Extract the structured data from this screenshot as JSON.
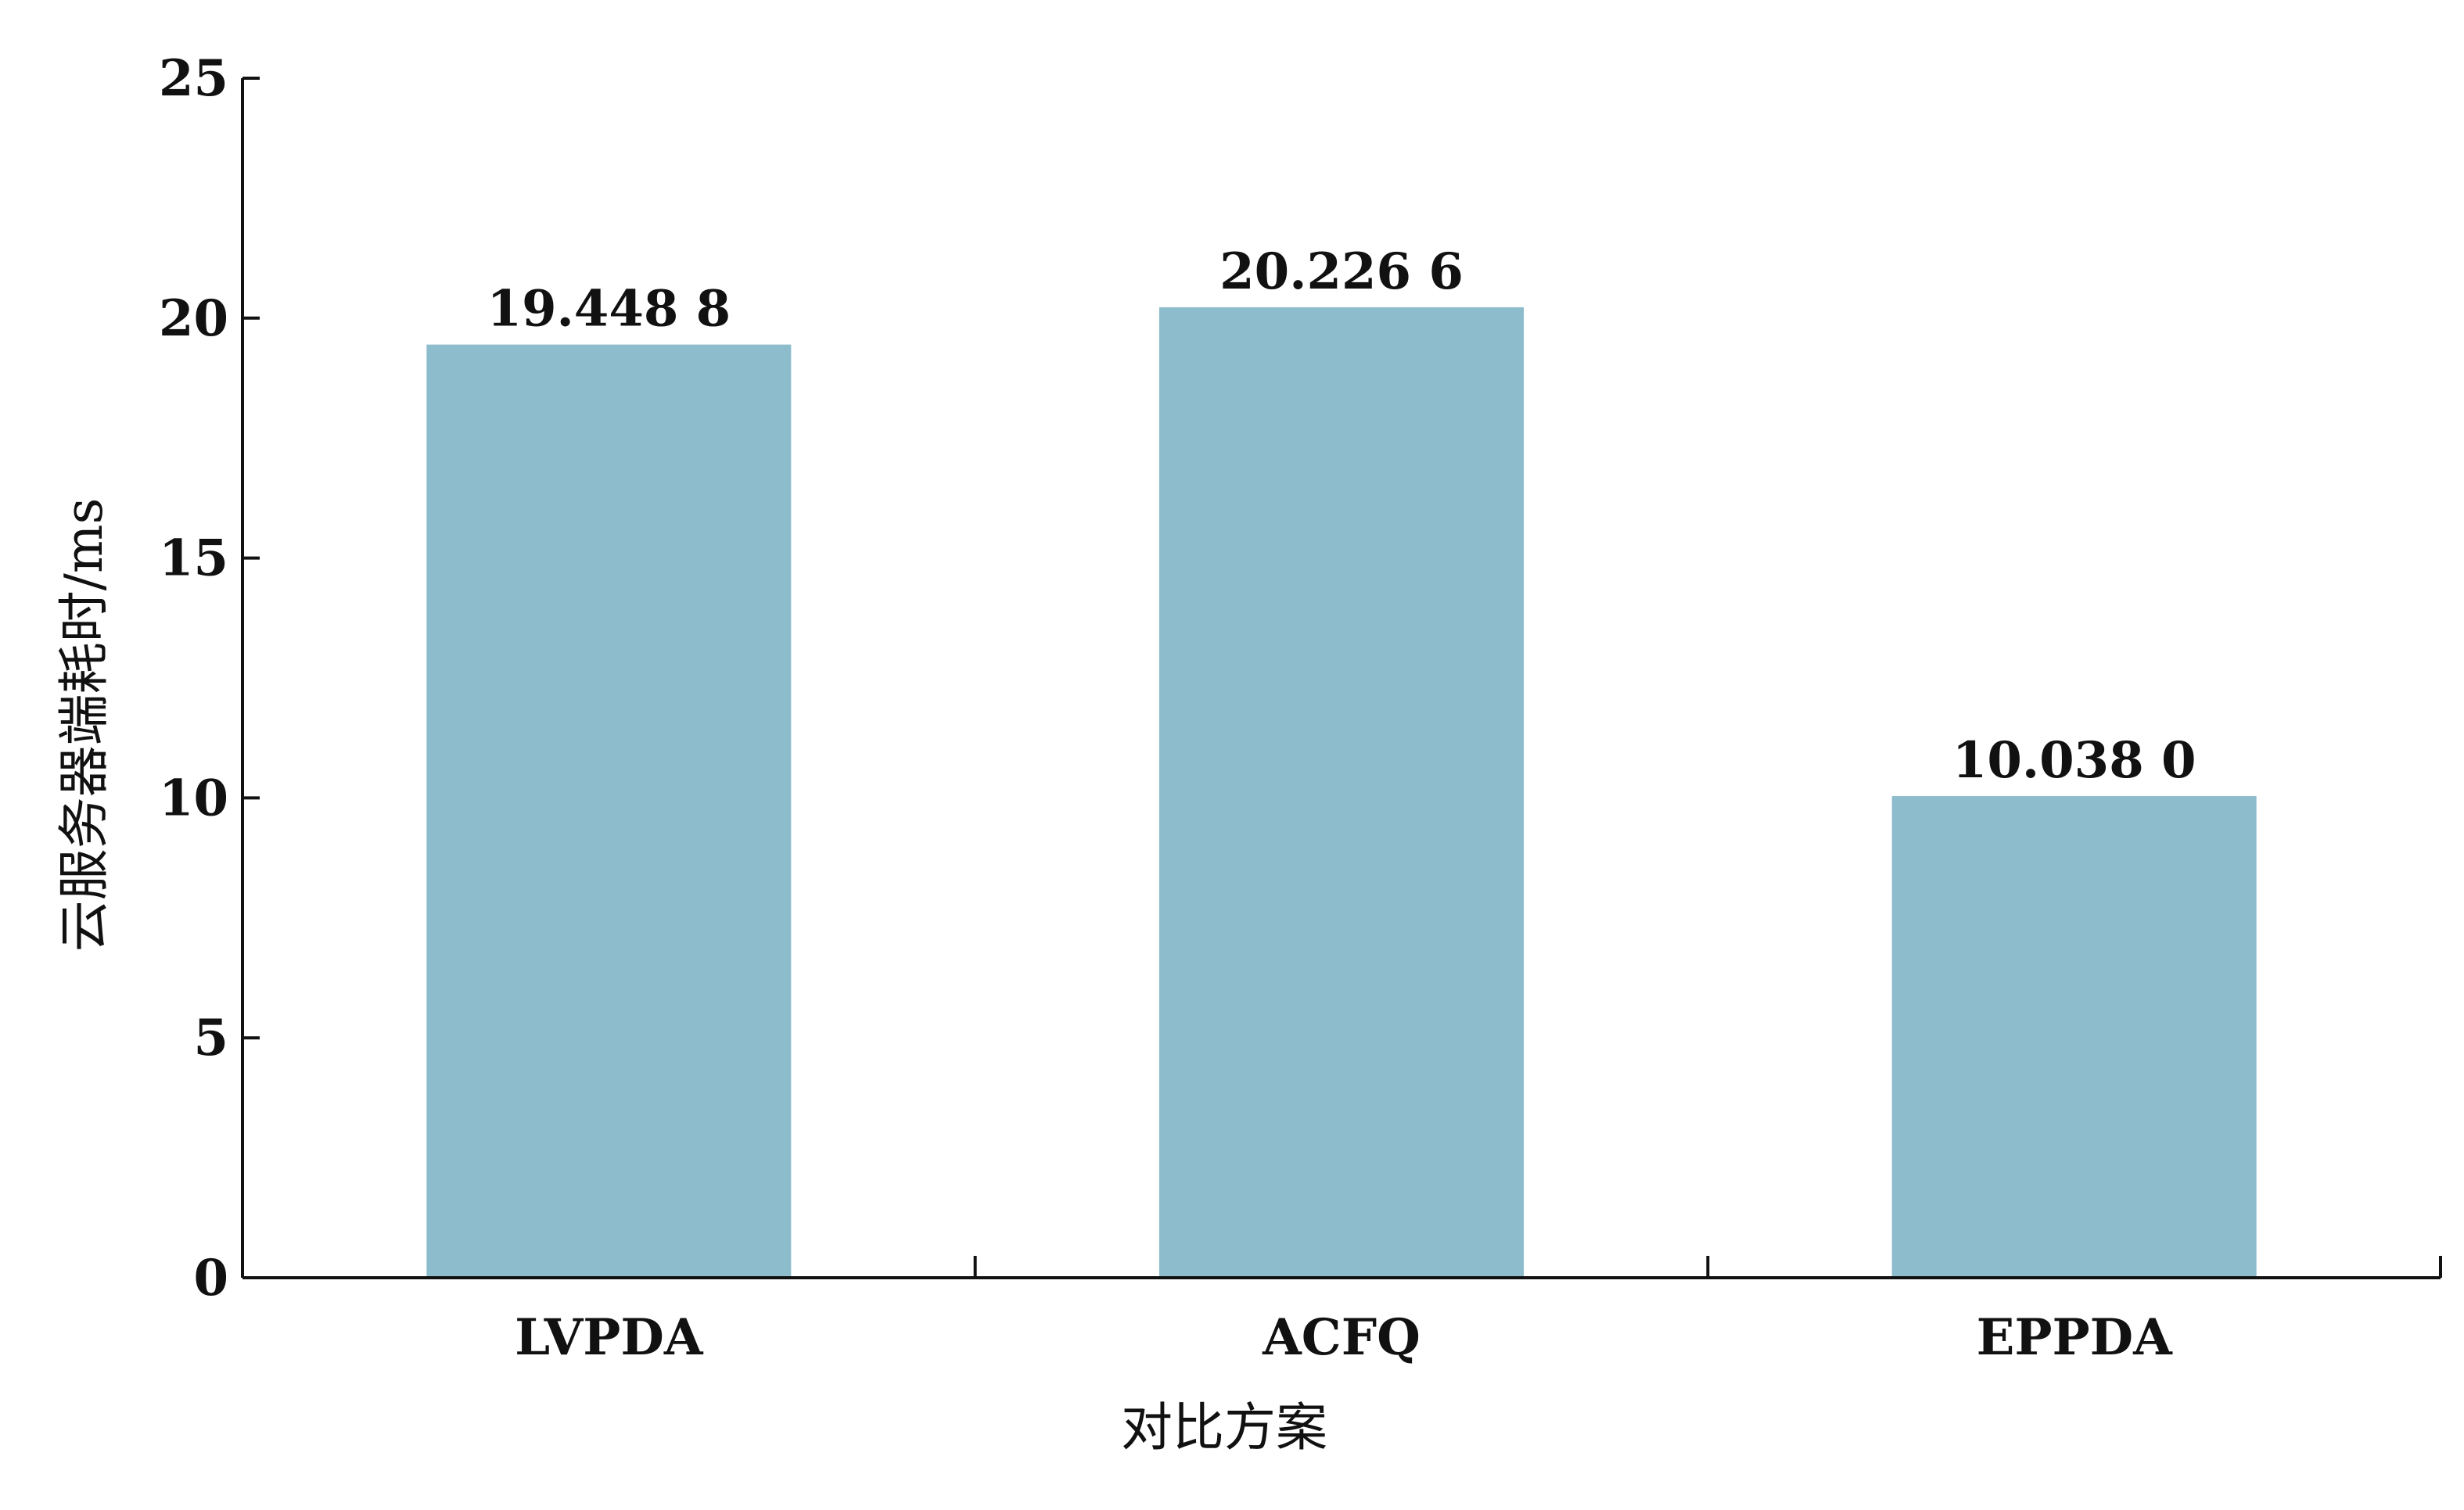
{
  "chart_data": {
    "type": "bar",
    "categories": [
      "LVPDA",
      "ACFQ",
      "EPPDA"
    ],
    "values": [
      19.4488,
      20.2266,
      10.038
    ],
    "data_labels": [
      "19.448 8",
      "20.226 6",
      "10.038 0"
    ],
    "xlabel": "对比方案",
    "ylabel": "云服务器端耗时/ms",
    "ylim": [
      0,
      25
    ],
    "yticks": [
      0,
      5,
      10,
      15,
      20,
      25
    ],
    "grid": false,
    "legend": "none"
  },
  "colors": {
    "bar": "#8dbdcd",
    "axis": "#111111"
  }
}
